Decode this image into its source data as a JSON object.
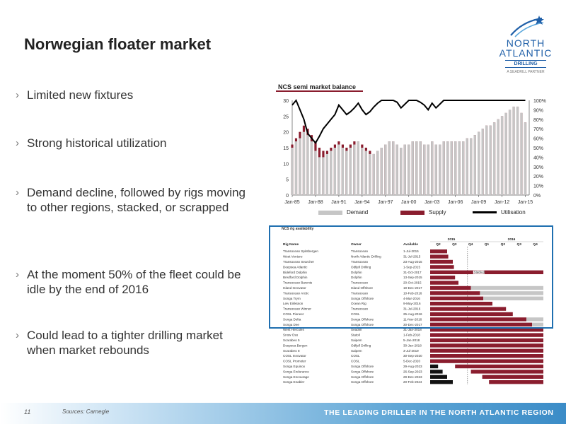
{
  "slide": {
    "title": "Norwegian floater market",
    "bullets": [
      "Limited new fixtures",
      "Strong historical utilization",
      "Demand decline, followed by rigs moving to other regions, stacked, or scrapped",
      "At the moment 50% of the fleet could be idle by the end of 2016",
      "Could lead to a tighter drilling market when market rebounds"
    ],
    "bullet_marker": "›",
    "page_number": "11",
    "sources": "Sources: Carnegie",
    "tagline": "THE LEADING DRILLER IN THE NORTH ATLANTIC REGION"
  },
  "logo": {
    "line1": "NORTH",
    "line2": "ATLANTIC",
    "line3": "DRILLING",
    "line4": "A SEADRILL PARTNER",
    "color": "#1f5fa8"
  },
  "colors": {
    "demand": "#c6c6c6",
    "supply": "#8a1d2e",
    "utilisation": "#000000",
    "accent": "#1f6fb0"
  },
  "chart_data": {
    "type": "bar",
    "title": "NCS semi market balance",
    "x_ticks": [
      "Jan-85",
      "Jan-88",
      "Jan-91",
      "Jan-94",
      "Jan-97",
      "Jan-00",
      "Jan-03",
      "Jan-06",
      "Jan-09",
      "Jan-12",
      "Jan-15"
    ],
    "y_ticks": [
      "0",
      "5",
      "10",
      "15",
      "20",
      "25",
      "30"
    ],
    "y2_ticks": [
      "0%",
      "10%",
      "20%",
      "30%",
      "40%",
      "50%",
      "60%",
      "70%",
      "80%",
      "90%",
      "100%"
    ],
    "ylim": [
      0,
      30
    ],
    "y2lim": [
      0,
      100
    ],
    "series": [
      {
        "name": "Demand",
        "style": "bars",
        "x": [
          1985,
          1985.5,
          1986,
          1986.5,
          1987,
          1987.5,
          1988,
          1988.5,
          1989,
          1989.5,
          1990,
          1990.5,
          1991,
          1991.5,
          1992,
          1992.5,
          1993,
          1993.5,
          1994,
          1994.5,
          1995,
          1995.5,
          1996,
          1996.5,
          1997,
          1997.5,
          1998,
          1998.5,
          1999,
          1999.5,
          2000,
          2000.5,
          2001,
          2001.5,
          2002,
          2002.5,
          2003,
          2003.5,
          2004,
          2004.5,
          2005,
          2005.5,
          2006,
          2006.5,
          2007,
          2007.5,
          2008,
          2008.5,
          2009,
          2009.5,
          2010,
          2010.5,
          2011,
          2011.5,
          2012,
          2012.5,
          2013,
          2013.5,
          2014,
          2014.5,
          2015
        ],
        "values": [
          15,
          17,
          18,
          20,
          19,
          17,
          14,
          12,
          12,
          13,
          14,
          15,
          16,
          15,
          14,
          15,
          16,
          17,
          15,
          14,
          13,
          13,
          14,
          15,
          16,
          17,
          17,
          16,
          15,
          16,
          16,
          17,
          17,
          17,
          16,
          16,
          17,
          16,
          16,
          17,
          17,
          17,
          17,
          17,
          17,
          18,
          18,
          19,
          20,
          21,
          22,
          22,
          23,
          24,
          25,
          26,
          27,
          28,
          28,
          26,
          23
        ]
      },
      {
        "name": "Supply",
        "style": "bars",
        "x": [
          1985,
          1985.5,
          1986,
          1986.5,
          1987,
          1987.5,
          1988,
          1988.5,
          1989,
          1989.5,
          1990,
          1990.5,
          1991,
          1991.5,
          1992,
          1992.5,
          1993,
          1993.5,
          1994,
          1994.5,
          1995,
          1995.5,
          1996,
          1996.5,
          1997,
          1997.5,
          1998,
          1998.5,
          1999,
          1999.5,
          2000,
          2000.5,
          2001,
          2001.5,
          2002,
          2002.5,
          2003,
          2003.5,
          2004,
          2004.5,
          2005,
          2005.5,
          2006,
          2006.5,
          2007,
          2007.5,
          2008,
          2008.5,
          2009,
          2009.5,
          2010,
          2010.5,
          2011,
          2011.5,
          2012,
          2012.5,
          2013,
          2013.5,
          2014,
          2014.5,
          2015
        ],
        "values": [
          16,
          18,
          20,
          22,
          21,
          19,
          17,
          15,
          14,
          14,
          15,
          16,
          17,
          16,
          15,
          16,
          17,
          17,
          16,
          15,
          14,
          13,
          14,
          15,
          16,
          17,
          17,
          16,
          15,
          16,
          16,
          17,
          17,
          17,
          16,
          16,
          17,
          16,
          16,
          17,
          17,
          17,
          17,
          17,
          17,
          18,
          18,
          19,
          20,
          21,
          22,
          22,
          23,
          24,
          25,
          26,
          27,
          28,
          28,
          26,
          23
        ]
      },
      {
        "name": "Utilisation",
        "style": "line",
        "axis": "right",
        "x": [
          1985,
          1985.5,
          1986,
          1986.5,
          1987,
          1987.5,
          1988,
          1988.5,
          1989,
          1989.5,
          1990,
          1990.5,
          1991,
          1991.5,
          1992,
          1992.5,
          1993,
          1993.5,
          1994,
          1994.5,
          1995,
          1995.5,
          1996,
          1996.5,
          1997,
          1997.5,
          1998,
          1998.5,
          1999,
          1999.5,
          2000,
          2000.5,
          2001,
          2001.5,
          2002,
          2002.5,
          2003,
          2003.5,
          2004,
          2004.5,
          2005,
          2005.5,
          2006,
          2006.5,
          2007,
          2007.5,
          2008,
          2008.5,
          2009,
          2009.5,
          2010,
          2010.5,
          2011,
          2011.5,
          2012,
          2012.5,
          2013,
          2013.5,
          2014,
          2014.5,
          2015
        ],
        "values": [
          95,
          100,
          90,
          80,
          65,
          60,
          55,
          62,
          70,
          75,
          80,
          85,
          95,
          90,
          85,
          88,
          92,
          97,
          90,
          85,
          88,
          93,
          97,
          100,
          100,
          100,
          100,
          98,
          92,
          96,
          100,
          100,
          100,
          98,
          95,
          90,
          97,
          92,
          96,
          100,
          100,
          100,
          100,
          100,
          100,
          100,
          100,
          100,
          100,
          100,
          100,
          100,
          100,
          100,
          100,
          100,
          100,
          100,
          100,
          100,
          100
        ]
      }
    ],
    "legend": [
      {
        "label": "Demand",
        "color": "#c6c6c6"
      },
      {
        "label": "Supply",
        "color": "#8a1d2e"
      },
      {
        "label": "Utilisation",
        "color": "#000000"
      }
    ],
    "legend_position": "bottom"
  },
  "rig_table": {
    "title": "NCS rig availability",
    "headers": [
      "Rig Name",
      "Owner",
      "Available"
    ],
    "years": [
      "2015",
      "2016"
    ],
    "quarters": [
      "Q2",
      "Q3",
      "Q4",
      "Q1",
      "Q2",
      "Q3",
      "Q4"
    ],
    "rows": [
      {
        "rig": "Transocean Spitsbergen",
        "owner": "Transocean",
        "avail": "1-Jul-2015",
        "s": 0.0,
        "e": 0.15,
        "type": "c"
      },
      {
        "rig": "West Venture",
        "owner": "North Atlantic Drilling",
        "avail": "31-Jul-2015",
        "s": 0.0,
        "e": 0.16,
        "type": "c"
      },
      {
        "rig": "Transocean Searcher",
        "owner": "Transocean",
        "avail": "23-Aug-2015",
        "s": 0.0,
        "e": 0.2,
        "type": "c"
      },
      {
        "rig": "Deepsea Atlantic",
        "owner": "Odfjell Drilling",
        "avail": "1-Sep-2015",
        "s": 0.0,
        "e": 0.21,
        "type": "c"
      },
      {
        "rig": "Bideford Dolphin",
        "owner": "Dolphin",
        "avail": "31-Oct-2017",
        "s": 0.0,
        "e": 1.0,
        "type": "c",
        "label": "Stacked"
      },
      {
        "rig": "Bredford Dolphin",
        "owner": "Dolphin",
        "avail": "13-Sep-2015",
        "s": 0.0,
        "e": 0.22,
        "type": "c"
      },
      {
        "rig": "Transocean Barents",
        "owner": "Transocean",
        "avail": "20-Oct-2015",
        "s": 0.0,
        "e": 0.25,
        "type": "c"
      },
      {
        "rig": "Island Innovator",
        "owner": "Island Offshore",
        "avail": "19-Dec-2017",
        "s": 0.0,
        "e": 0.36,
        "type": "c",
        "g": 0.64
      },
      {
        "rig": "Transocean Arctic",
        "owner": "Transocean",
        "avail": "10-Feb-2016",
        "s": 0.0,
        "e": 0.44,
        "type": "c",
        "g": 0.56
      },
      {
        "rig": "Songa Trym",
        "owner": "Songa Offshore",
        "avail": "4-Mar-2016",
        "s": 0.0,
        "e": 0.47,
        "type": "c",
        "g": 0.53
      },
      {
        "rig": "Leiv Eiriksson",
        "owner": "Ocean Rig",
        "avail": "9-May-2016",
        "s": 0.0,
        "e": 0.55,
        "type": "c"
      },
      {
        "rig": "Transocean Winner",
        "owner": "Transocean",
        "avail": "31-Jul-2016",
        "s": 0.0,
        "e": 0.67,
        "type": "c"
      },
      {
        "rig": "COSL Pioneer",
        "owner": "COSL",
        "avail": "25-Aug-2016",
        "s": 0.0,
        "e": 0.73,
        "type": "c"
      },
      {
        "rig": "Songa Delta",
        "owner": "Songa Offshore",
        "avail": "11-Nov-2016",
        "s": 0.0,
        "e": 0.85,
        "type": "c",
        "g": 0.15
      },
      {
        "rig": "Songa Dee",
        "owner": "Songa Offshore",
        "avail": "30-Dec-2017",
        "s": 0.0,
        "e": 0.9,
        "type": "c",
        "g": 0.1
      },
      {
        "rig": "West Hercules",
        "owner": "Seadrill",
        "avail": "31-Jan-2018",
        "s": 0.0,
        "e": 1.0,
        "type": "c"
      },
      {
        "rig": "Snow Oso",
        "owner": "Statoil",
        "avail": "1-Feb-2018",
        "s": 0.0,
        "e": 1.0,
        "type": "c"
      },
      {
        "rig": "Scarabeo 5",
        "owner": "Saipem",
        "avail": "5-Jan-2018",
        "s": 0.0,
        "e": 1.0,
        "type": "c"
      },
      {
        "rig": "Deepsea Bergen",
        "owner": "Odfjell Drilling",
        "avail": "30-Jan-2018",
        "s": 0.0,
        "e": 1.0,
        "type": "c"
      },
      {
        "rig": "Scarabeo 8",
        "owner": "Saipem",
        "avail": "3-Jul-2019",
        "s": 0.0,
        "e": 1.0,
        "type": "c"
      },
      {
        "rig": "COSL Innovator",
        "owner": "COSL",
        "avail": "30-Sep-2020",
        "s": 0.0,
        "e": 1.0,
        "type": "c"
      },
      {
        "rig": "COSL Promoter",
        "owner": "COSL",
        "avail": "5-Dec-2020",
        "s": 0.0,
        "e": 1.0,
        "type": "c"
      },
      {
        "rig": "Songa Equinox",
        "owner": "Songa Offshore",
        "avail": "29-Aug-2023",
        "s": 0.0,
        "e": 0.07,
        "type": "b",
        "s2": 0.22,
        "e2": 1.0
      },
      {
        "rig": "Songa Endurance",
        "owner": "Songa Offshore",
        "avail": "26-Sep-2023",
        "s": 0.0,
        "e": 0.11,
        "type": "b",
        "s2": 0.36,
        "e2": 1.0
      },
      {
        "rig": "Songa Encourage",
        "owner": "Songa Offshore",
        "avail": "29-Dec-2023",
        "s": 0.0,
        "e": 0.15,
        "type": "b",
        "s2": 0.46,
        "e2": 1.0
      },
      {
        "rig": "Songa Enabler",
        "owner": "Songa Offshore",
        "avail": "20-Feb-2024",
        "s": 0.0,
        "e": 0.2,
        "type": "b",
        "s2": 0.52,
        "e2": 1.0
      }
    ]
  }
}
